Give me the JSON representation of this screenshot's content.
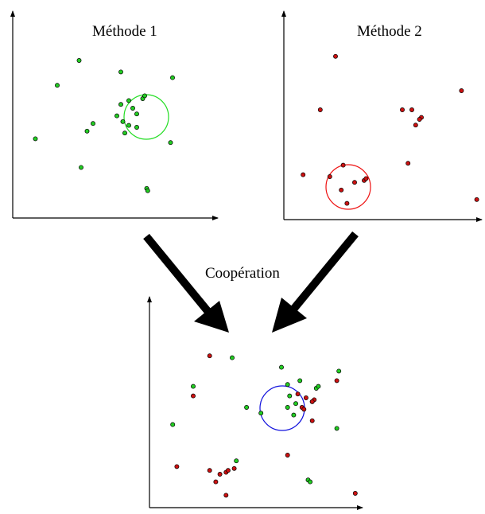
{
  "labels": {
    "method1": "Méthode 1",
    "method2": "Méthode 2",
    "cooperation": "Coopération"
  },
  "colors": {
    "green_point": "#22cc22",
    "red_point": "#cc1111",
    "green_circle": "#22dd22",
    "red_circle": "#ee1111",
    "blue_circle": "#1111dd",
    "arrow": "#000000",
    "axis": "#000000"
  },
  "panels": [
    {
      "id": "method1",
      "title_key": "method1",
      "circle_color": "green_circle",
      "points": [
        {
          "x": 0.31,
          "y": 0.8,
          "c": "green"
        },
        {
          "x": 0.2,
          "y": 0.67,
          "c": "green"
        },
        {
          "x": 0.52,
          "y": 0.74,
          "c": "green"
        },
        {
          "x": 0.78,
          "y": 0.71,
          "c": "green"
        },
        {
          "x": 0.09,
          "y": 0.39,
          "c": "green"
        },
        {
          "x": 0.38,
          "y": 0.47,
          "c": "green"
        },
        {
          "x": 0.35,
          "y": 0.43,
          "c": "green"
        },
        {
          "x": 0.32,
          "y": 0.24,
          "c": "green"
        },
        {
          "x": 0.77,
          "y": 0.37,
          "c": "green"
        },
        {
          "x": 0.65,
          "y": 0.13,
          "c": "green"
        },
        {
          "x": 0.655,
          "y": 0.118,
          "c": "green"
        },
        {
          "x": 0.56,
          "y": 0.59,
          "c": "green"
        },
        {
          "x": 0.58,
          "y": 0.55,
          "c": "green"
        },
        {
          "x": 0.52,
          "y": 0.57,
          "c": "green"
        },
        {
          "x": 0.63,
          "y": 0.6,
          "c": "green"
        },
        {
          "x": 0.64,
          "y": 0.615,
          "c": "green"
        },
        {
          "x": 0.6,
          "y": 0.52,
          "c": "green"
        },
        {
          "x": 0.53,
          "y": 0.48,
          "c": "green"
        },
        {
          "x": 0.56,
          "y": 0.46,
          "c": "green"
        },
        {
          "x": 0.6,
          "y": 0.45,
          "c": "green"
        },
        {
          "x": 0.5,
          "y": 0.51,
          "c": "green"
        },
        {
          "x": 0.54,
          "y": 0.42,
          "c": "green"
        }
      ]
    },
    {
      "id": "method2",
      "title_key": "method2",
      "circle_color": "red_circle",
      "points": [
        {
          "x": 0.25,
          "y": 0.83,
          "c": "red"
        },
        {
          "x": 0.91,
          "y": 0.65,
          "c": "red"
        },
        {
          "x": 0.17,
          "y": 0.55,
          "c": "red"
        },
        {
          "x": 0.6,
          "y": 0.55,
          "c": "red"
        },
        {
          "x": 0.65,
          "y": 0.55,
          "c": "red"
        },
        {
          "x": 0.7,
          "y": 0.51,
          "c": "red"
        },
        {
          "x": 0.69,
          "y": 0.5,
          "c": "red"
        },
        {
          "x": 0.67,
          "y": 0.47,
          "c": "red"
        },
        {
          "x": 0.63,
          "y": 0.27,
          "c": "red"
        },
        {
          "x": 0.08,
          "y": 0.21,
          "c": "red"
        },
        {
          "x": 0.99,
          "y": 0.08,
          "c": "red"
        },
        {
          "x": 0.29,
          "y": 0.26,
          "c": "red"
        },
        {
          "x": 0.22,
          "y": 0.2,
          "c": "red"
        },
        {
          "x": 0.28,
          "y": 0.13,
          "c": "red"
        },
        {
          "x": 0.35,
          "y": 0.17,
          "c": "red"
        },
        {
          "x": 0.4,
          "y": 0.18,
          "c": "red"
        },
        {
          "x": 0.41,
          "y": 0.19,
          "c": "red"
        },
        {
          "x": 0.31,
          "y": 0.06,
          "c": "red"
        }
      ]
    },
    {
      "id": "cooperation",
      "title_key": null,
      "circle_color": "blue_circle",
      "points": [
        {
          "x": 0.27,
          "y": 0.77,
          "c": "red"
        },
        {
          "x": 0.38,
          "y": 0.76,
          "c": "green"
        },
        {
          "x": 0.62,
          "y": 0.71,
          "c": "green"
        },
        {
          "x": 0.9,
          "y": 0.69,
          "c": "green"
        },
        {
          "x": 0.89,
          "y": 0.64,
          "c": "red"
        },
        {
          "x": 0.19,
          "y": 0.61,
          "c": "green"
        },
        {
          "x": 0.19,
          "y": 0.56,
          "c": "red"
        },
        {
          "x": 0.45,
          "y": 0.5,
          "c": "green"
        },
        {
          "x": 0.52,
          "y": 0.47,
          "c": "green"
        },
        {
          "x": 0.77,
          "y": 0.43,
          "c": "red"
        },
        {
          "x": 0.09,
          "y": 0.41,
          "c": "green"
        },
        {
          "x": 0.89,
          "y": 0.39,
          "c": "green"
        },
        {
          "x": 0.65,
          "y": 0.25,
          "c": "red"
        },
        {
          "x": 0.4,
          "y": 0.22,
          "c": "green"
        },
        {
          "x": 0.11,
          "y": 0.19,
          "c": "red"
        },
        {
          "x": 0.39,
          "y": 0.18,
          "c": "red"
        },
        {
          "x": 0.27,
          "y": 0.17,
          "c": "red"
        },
        {
          "x": 0.35,
          "y": 0.16,
          "c": "red"
        },
        {
          "x": 0.36,
          "y": 0.17,
          "c": "red"
        },
        {
          "x": 0.32,
          "y": 0.15,
          "c": "red"
        },
        {
          "x": 0.3,
          "y": 0.11,
          "c": "red"
        },
        {
          "x": 0.75,
          "y": 0.12,
          "c": "green"
        },
        {
          "x": 0.76,
          "y": 0.11,
          "c": "green"
        },
        {
          "x": 0.35,
          "y": 0.04,
          "c": "red"
        },
        {
          "x": 0.98,
          "y": 0.05,
          "c": "red"
        },
        {
          "x": 0.65,
          "y": 0.62,
          "c": "green"
        },
        {
          "x": 0.71,
          "y": 0.64,
          "c": "green"
        },
        {
          "x": 0.79,
          "y": 0.6,
          "c": "green"
        },
        {
          "x": 0.8,
          "y": 0.61,
          "c": "green"
        },
        {
          "x": 0.7,
          "y": 0.57,
          "c": "red"
        },
        {
          "x": 0.66,
          "y": 0.56,
          "c": "green"
        },
        {
          "x": 0.74,
          "y": 0.55,
          "c": "red"
        },
        {
          "x": 0.77,
          "y": 0.53,
          "c": "green"
        },
        {
          "x": 0.78,
          "y": 0.54,
          "c": "red"
        },
        {
          "x": 0.77,
          "y": 0.53,
          "c": "red"
        },
        {
          "x": 0.69,
          "y": 0.52,
          "c": "green"
        },
        {
          "x": 0.72,
          "y": 0.5,
          "c": "red"
        },
        {
          "x": 0.73,
          "y": 0.49,
          "c": "red"
        },
        {
          "x": 0.65,
          "y": 0.5,
          "c": "green"
        },
        {
          "x": 0.68,
          "y": 0.46,
          "c": "green"
        }
      ]
    }
  ]
}
